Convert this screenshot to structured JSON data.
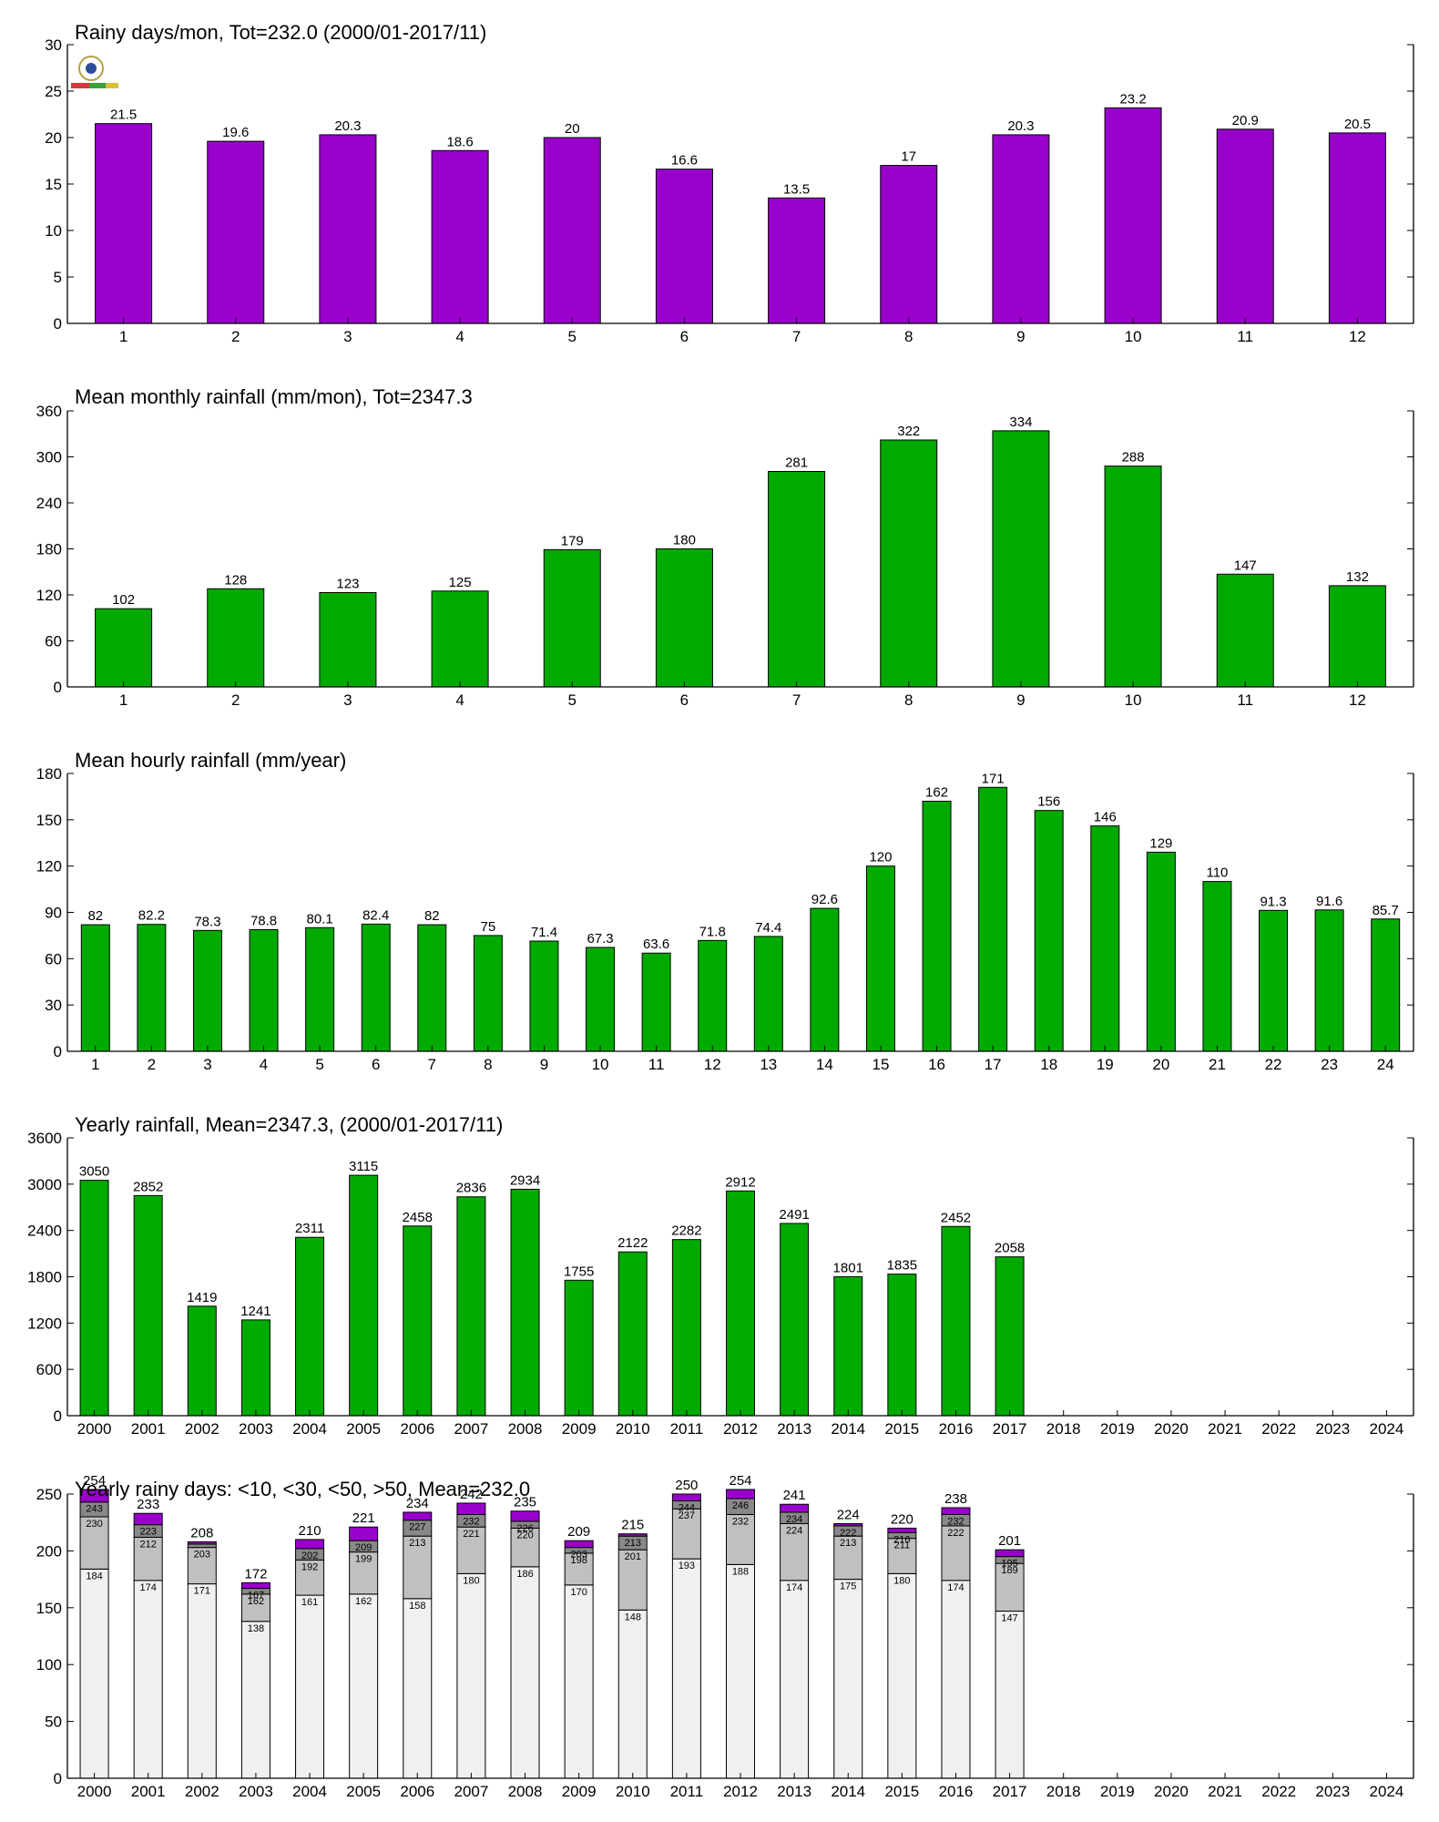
{
  "chart_data": [
    {
      "type": "bar",
      "title": "Rainy days/mon, Tot=232.0 (2000/01-2017/11)",
      "categories": [
        "1",
        "2",
        "3",
        "4",
        "5",
        "6",
        "7",
        "8",
        "9",
        "10",
        "11",
        "12"
      ],
      "values": [
        21.5,
        19.6,
        20.3,
        18.6,
        20,
        16.6,
        13.5,
        17,
        20.3,
        23.2,
        20.9,
        20.5
      ],
      "value_labels": [
        "21.5",
        "19.6",
        "20.3",
        "18.6",
        "20",
        "16.6",
        "13.5",
        "17",
        "20.3",
        "23.2",
        "20.9",
        "20.5"
      ],
      "ylim": [
        0,
        30
      ],
      "yticks": [
        0,
        5,
        10,
        15,
        20,
        25,
        30
      ],
      "color": "#9900cc",
      "has_logo": true
    },
    {
      "type": "bar",
      "title": "Mean monthly rainfall (mm/mon), Tot=2347.3",
      "categories": [
        "1",
        "2",
        "3",
        "4",
        "5",
        "6",
        "7",
        "8",
        "9",
        "10",
        "11",
        "12"
      ],
      "values": [
        102,
        128,
        123,
        125,
        179,
        180,
        281,
        322,
        334,
        288,
        147,
        132
      ],
      "value_labels": [
        "102",
        "128",
        "123",
        "125",
        "179",
        "180",
        "281",
        "322",
        "334",
        "288",
        "147",
        "132"
      ],
      "ylim": [
        0,
        360
      ],
      "yticks": [
        0,
        60,
        120,
        180,
        240,
        300,
        360
      ],
      "color": "#00aa00"
    },
    {
      "type": "bar",
      "title": "Mean hourly rainfall (mm/year)",
      "categories": [
        "1",
        "2",
        "3",
        "4",
        "5",
        "6",
        "7",
        "8",
        "9",
        "10",
        "11",
        "12",
        "13",
        "14",
        "15",
        "16",
        "17",
        "18",
        "19",
        "20",
        "21",
        "22",
        "23",
        "24"
      ],
      "values": [
        82,
        82.2,
        78.3,
        78.8,
        80.1,
        82.4,
        82,
        75,
        71.4,
        67.3,
        63.6,
        71.8,
        74.4,
        92.6,
        120,
        162,
        171,
        156,
        146,
        129,
        110,
        91.3,
        91.6,
        85.7
      ],
      "value_labels": [
        "82",
        "82.2",
        "78.3",
        "78.8",
        "80.1",
        "82.4",
        "82",
        "75",
        "71.4",
        "67.3",
        "63.6",
        "71.8",
        "74.4",
        "92.6",
        "120",
        "162",
        "171",
        "156",
        "146",
        "129",
        "110",
        "91.3",
        "91.6",
        "85.7"
      ],
      "ylim": [
        0,
        180
      ],
      "yticks": [
        0,
        30,
        60,
        90,
        120,
        150,
        180
      ],
      "color": "#00aa00"
    },
    {
      "type": "bar",
      "title": "Yearly rainfall, Mean=2347.3, (2000/01-2017/11)",
      "categories": [
        "2000",
        "2001",
        "2002",
        "2003",
        "2004",
        "2005",
        "2006",
        "2007",
        "2008",
        "2009",
        "2010",
        "2011",
        "2012",
        "2013",
        "2014",
        "2015",
        "2016",
        "2017",
        "2018",
        "2019",
        "2020",
        "2021",
        "2022",
        "2023",
        "2024"
      ],
      "values": [
        3050,
        2852,
        1419,
        1241,
        2311,
        3115,
        2458,
        2836,
        2934,
        1755,
        2122,
        2282,
        2912,
        2491,
        1801,
        1835,
        2452,
        2058,
        null,
        null,
        null,
        null,
        null,
        null,
        null
      ],
      "value_labels": [
        "3050",
        "2852",
        "1419",
        "1241",
        "2311",
        "3115",
        "2458",
        "2836",
        "2934",
        "1755",
        "2122",
        "2282",
        "2912",
        "2491",
        "1801",
        "1835",
        "2452",
        "2058",
        "",
        "",
        "",
        "",
        "",
        "",
        ""
      ],
      "ylim": [
        0,
        3600
      ],
      "yticks": [
        0,
        600,
        1200,
        1800,
        2400,
        3000,
        3600
      ],
      "color": "#00aa00"
    },
    {
      "type": "stacked-bar",
      "title": "Yearly rainy days: <10, <30, <50, >50, Mean=232.0",
      "categories": [
        "2000",
        "2001",
        "2002",
        "2003",
        "2004",
        "2005",
        "2006",
        "2007",
        "2008",
        "2009",
        "2010",
        "2011",
        "2012",
        "2013",
        "2014",
        "2015",
        "2016",
        "2017",
        "2018",
        "2019",
        "2020",
        "2021",
        "2022",
        "2023",
        "2024"
      ],
      "cumulative": [
        [
          184,
          230,
          243,
          254
        ],
        [
          174,
          212,
          223,
          233
        ],
        [
          171,
          203,
          206,
          208
        ],
        [
          138,
          162,
          167,
          172
        ],
        [
          161,
          192,
          202,
          210
        ],
        [
          162,
          199,
          209,
          221
        ],
        [
          158,
          213,
          227,
          234
        ],
        [
          180,
          221,
          232,
          242
        ],
        [
          186,
          220,
          226,
          235
        ],
        [
          170,
          198,
          203,
          209
        ],
        [
          148,
          201,
          213,
          215
        ],
        [
          193,
          237,
          244,
          250
        ],
        [
          188,
          232,
          246,
          254
        ],
        [
          174,
          224,
          234,
          241
        ],
        [
          175,
          213,
          222,
          224
        ],
        [
          180,
          211,
          216,
          220
        ],
        [
          174,
          222,
          232,
          238
        ],
        [
          147,
          189,
          195,
          201
        ],
        null,
        null,
        null,
        null,
        null,
        null,
        null
      ],
      "segment_labels": [
        [
          "184",
          "230",
          "243",
          "254"
        ],
        [
          "174",
          "212",
          "223",
          "233"
        ],
        [
          "171",
          "203",
          "",
          ""
        ],
        [
          "138",
          "162",
          "167",
          ""
        ],
        [
          "161",
          "192",
          "202",
          ""
        ],
        [
          "162",
          "199",
          "209",
          ""
        ],
        [
          "158",
          "213",
          "227",
          ""
        ],
        [
          "180",
          "221",
          "232",
          ""
        ],
        [
          "186",
          "220",
          "226",
          ""
        ],
        [
          "170",
          "198",
          "203",
          ""
        ],
        [
          "148",
          "201",
          "213",
          ""
        ],
        [
          "193",
          "237",
          "244",
          ""
        ],
        [
          "188",
          "232",
          "246",
          ""
        ],
        [
          "174",
          "224",
          "234",
          ""
        ],
        [
          "175",
          "213",
          "222",
          ""
        ],
        [
          "180",
          "211",
          "216",
          ""
        ],
        [
          "174",
          "222",
          "232",
          ""
        ],
        [
          "147",
          "189",
          "195",
          ""
        ],
        null,
        null,
        null,
        null,
        null,
        null,
        null
      ],
      "total_labels": [
        "254",
        "233",
        "208",
        "172",
        "210",
        "221",
        "234",
        "242",
        "235",
        "209",
        "215",
        "250",
        "254",
        "241",
        "224",
        "220",
        "238",
        "201",
        "",
        "",
        "",
        "",
        "",
        "",
        ""
      ],
      "ylim": [
        0,
        250
      ],
      "yticks": [
        0,
        50,
        100,
        150,
        200,
        250
      ],
      "colors": [
        "#f0f0f0",
        "#c0c0c0",
        "#888888",
        "#9900cc"
      ]
    }
  ]
}
